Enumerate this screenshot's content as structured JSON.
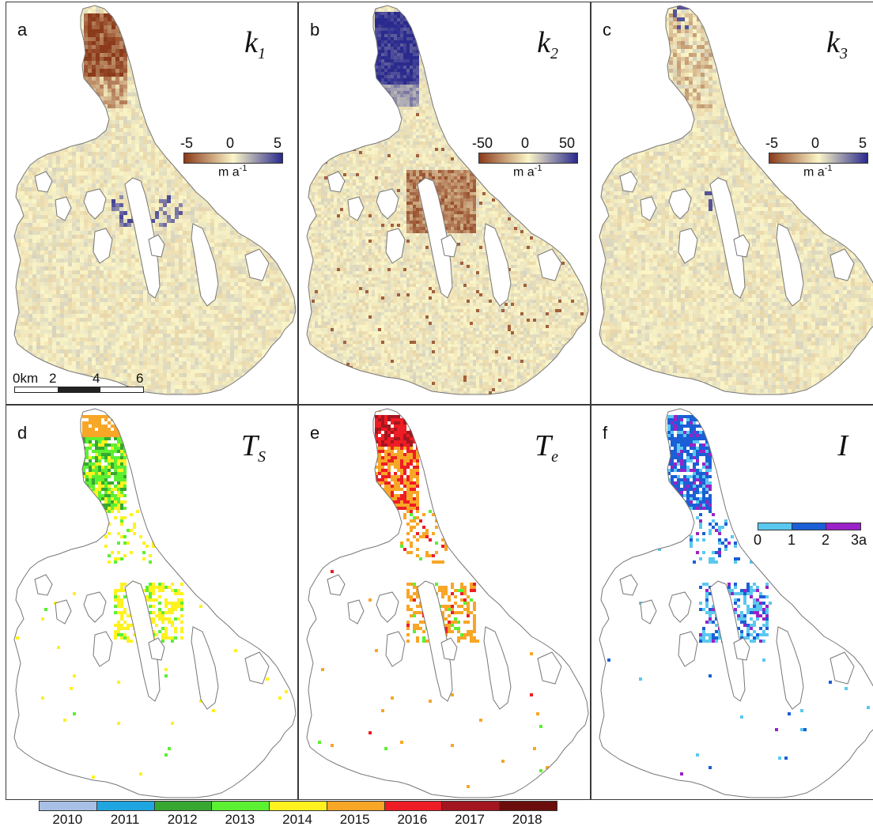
{
  "panels": [
    {
      "id": "a",
      "title_main": "k",
      "title_sub": "1",
      "kind": "rate",
      "colorbar": {
        "min": "-5",
        "mid": "0",
        "max": "5",
        "unit": "m a",
        "unit_exp": "-1"
      }
    },
    {
      "id": "b",
      "title_main": "k",
      "title_sub": "2",
      "kind": "rate",
      "colorbar": {
        "min": "-50",
        "mid": "0",
        "max": "50",
        "unit": "m a",
        "unit_exp": "-1"
      }
    },
    {
      "id": "c",
      "title_main": "k",
      "title_sub": "3",
      "kind": "rate",
      "colorbar": {
        "min": "-5",
        "mid": "0",
        "max": "5",
        "unit": "m a",
        "unit_exp": "-1"
      }
    },
    {
      "id": "d",
      "title_main": "T",
      "title_sub": "S",
      "kind": "year"
    },
    {
      "id": "e",
      "title_main": "T",
      "title_sub": "e",
      "kind": "year"
    },
    {
      "id": "f",
      "title_main": "I",
      "title_sub": "",
      "kind": "interval",
      "colorbar": {
        "labels": [
          "0",
          "1",
          "2",
          "3a"
        ],
        "colors": [
          "#5bc8ef",
          "#1a5fd6",
          "#9a22c8"
        ]
      }
    }
  ],
  "scale_bar": {
    "labels": [
      "0km",
      "2",
      "4",
      "6"
    ]
  },
  "year_legend": {
    "years": [
      "2010",
      "2011",
      "2012",
      "2013",
      "2014",
      "2015",
      "2016",
      "2017",
      "2018"
    ],
    "colors": [
      "#a8c0e6",
      "#1fa6e0",
      "#36a832",
      "#5cf032",
      "#fff21f",
      "#f8a626",
      "#ee1c24",
      "#a3161f",
      "#6b0d0d"
    ]
  },
  "colors": {
    "diverging_low": "#8b3a1a",
    "diverging_mid": "#fbf6c8",
    "diverging_high": "#2a2a8e",
    "outline": "#777777"
  }
}
